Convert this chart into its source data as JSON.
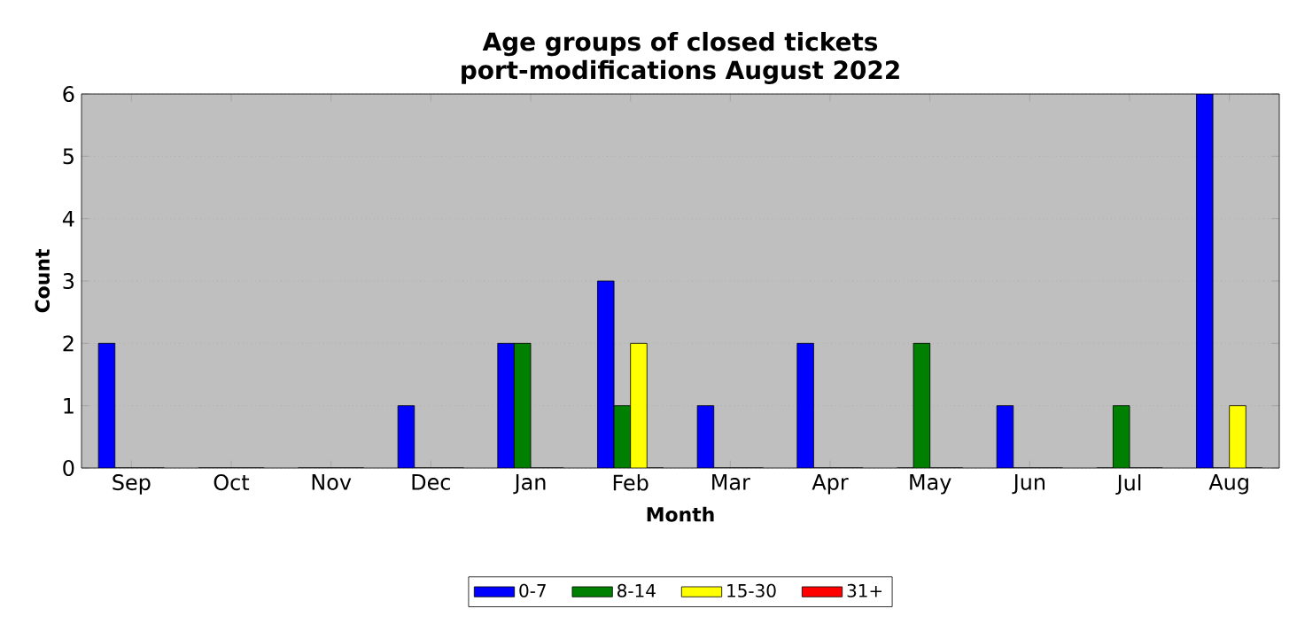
{
  "chart_data": {
    "type": "bar",
    "title": "Age groups of closed tickets",
    "subtitle": "port-modifications August 2022",
    "xlabel": "Month",
    "ylabel": "Count",
    "categories": [
      "Sep",
      "Oct",
      "Nov",
      "Dec",
      "Jan",
      "Feb",
      "Mar",
      "Apr",
      "May",
      "Jun",
      "Jul",
      "Aug"
    ],
    "series": [
      {
        "name": "0-7",
        "color": "#0000ff",
        "values": [
          2,
          0,
          0,
          1,
          2,
          3,
          1,
          2,
          0,
          1,
          0,
          6
        ]
      },
      {
        "name": "8-14",
        "color": "#008000",
        "values": [
          0,
          0,
          0,
          0,
          2,
          1,
          0,
          0,
          2,
          0,
          1,
          0
        ]
      },
      {
        "name": "15-30",
        "color": "#ffff00",
        "values": [
          0,
          0,
          0,
          0,
          0,
          2,
          0,
          0,
          0,
          0,
          0,
          1
        ]
      },
      {
        "name": "31+",
        "color": "#ff0000",
        "values": [
          0,
          0,
          0,
          0,
          0,
          0,
          0,
          0,
          0,
          0,
          0,
          0
        ]
      }
    ],
    "ylim": [
      0,
      6
    ],
    "yticks": [
      0,
      1,
      2,
      3,
      4,
      5,
      6
    ],
    "grid": "y",
    "legend": "bottom"
  }
}
